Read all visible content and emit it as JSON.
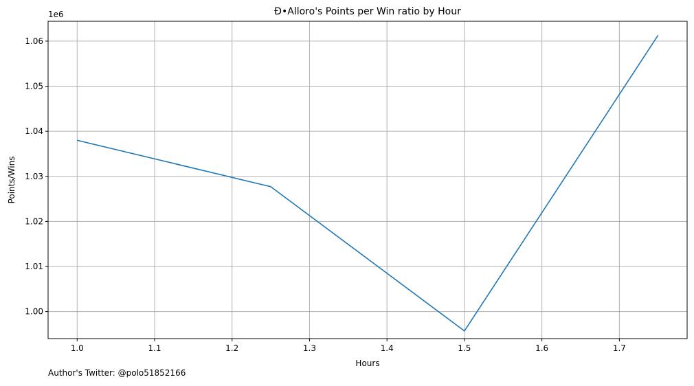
{
  "chart_data": {
    "type": "line",
    "title": "Đ•Alloro's Points per Win ratio by Hour",
    "xlabel": "Hours",
    "ylabel": "Points/Wins",
    "y_offset_label": "1e6",
    "xlim": [
      0.9625,
      1.7875
    ],
    "ylim": [
      994000,
      1064400
    ],
    "x_ticks": [
      1.0,
      1.1,
      1.2,
      1.3,
      1.4,
      1.5,
      1.6,
      1.7
    ],
    "x_tick_labels": [
      "1.0",
      "1.1",
      "1.2",
      "1.3",
      "1.4",
      "1.5",
      "1.6",
      "1.7"
    ],
    "y_ticks": [
      1000000,
      1010000,
      1020000,
      1030000,
      1040000,
      1050000,
      1060000
    ],
    "y_tick_labels": [
      "1.00",
      "1.01",
      "1.02",
      "1.03",
      "1.04",
      "1.05",
      "1.06"
    ],
    "grid": true,
    "series": [
      {
        "color": "#1f77b4",
        "x": [
          1.0,
          1.25,
          1.5,
          1.75
        ],
        "y": [
          1038000,
          1027700,
          995700,
          1061300
        ]
      }
    ]
  },
  "footnote": "Author's Twitter: @polo51852166"
}
